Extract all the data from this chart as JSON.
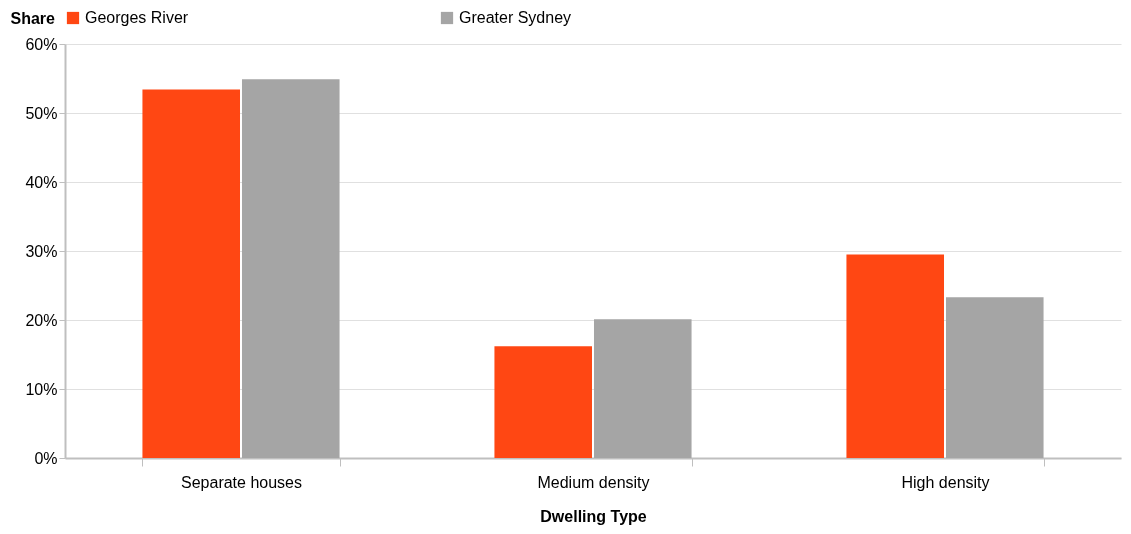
{
  "chart_data": {
    "type": "bar",
    "ylabel": "Share",
    "xlabel": "Dwelling Type",
    "categories": [
      "Separate houses",
      "Medium density",
      "High density"
    ],
    "series": [
      {
        "name": "Georges River",
        "color": "#ff4713",
        "values": [
          53.4,
          16.2,
          29.5
        ]
      },
      {
        "name": "Greater Sydney",
        "color": "#a5a5a5",
        "values": [
          54.9,
          20.1,
          23.3
        ]
      }
    ],
    "ylim": [
      0,
      60
    ],
    "yticks": [
      {
        "value": 0,
        "label": "0%"
      },
      {
        "value": 10,
        "label": "10%"
      },
      {
        "value": 20,
        "label": "20%"
      },
      {
        "value": 30,
        "label": "30%"
      },
      {
        "value": 40,
        "label": "40%"
      },
      {
        "value": 50,
        "label": "50%"
      },
      {
        "value": 60,
        "label": "60%"
      }
    ],
    "grid": "y",
    "legend": "top"
  }
}
